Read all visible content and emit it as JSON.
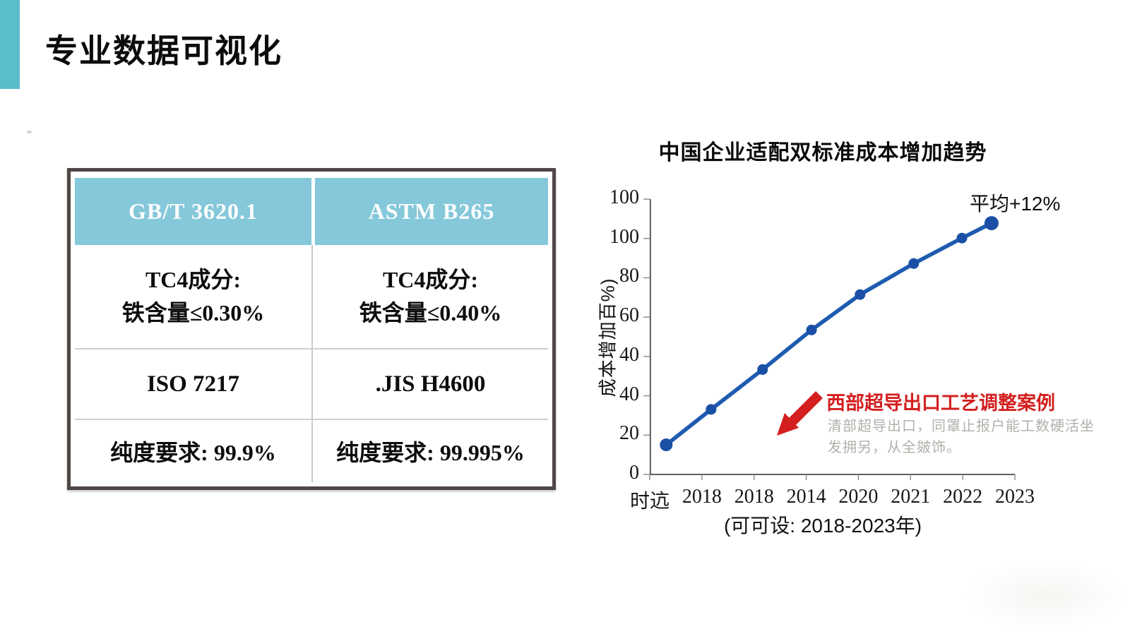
{
  "slide": {
    "title": "专业数据可视化",
    "accent_color": "#5bbcca"
  },
  "table": {
    "header_bg": "#84c8da",
    "headers": [
      "GB/T 3620.1",
      "ASTM B265"
    ],
    "rows": [
      {
        "left": [
          "TC4成分:",
          "铁含量≤0.30%"
        ],
        "right": [
          "TC4成分:",
          "铁含量≤0.40%"
        ]
      },
      {
        "left": [
          "ISO 7217"
        ],
        "right": [
          ".JIS H4600"
        ]
      },
      {
        "left": [
          "纯度要求: 99.9%"
        ],
        "right": [
          "纯度要求: 99.995%"
        ]
      }
    ]
  },
  "chart_data": {
    "type": "line",
    "title": "中国企业适配双标准成本增加趋势",
    "ylabel": "成本增加百%)",
    "caption": "(可可设: 2018-2023年)",
    "end_label": "平均+12%",
    "y_tick_labels": [
      "100",
      "100",
      "80",
      "60",
      "40",
      "40",
      "20",
      "0"
    ],
    "x_tick_labels": [
      "时迒",
      "2018",
      "2018",
      "2014",
      "2020",
      "2021",
      "2022",
      "2023"
    ],
    "series": [
      {
        "name": "成本增加趋势",
        "values_estimated_pct": [
          11,
          24,
          38,
          53,
          66,
          77,
          86,
          92
        ]
      }
    ],
    "point_fracs": [
      [
        0.045,
        0.893
      ],
      [
        0.168,
        0.765
      ],
      [
        0.309,
        0.621
      ],
      [
        0.443,
        0.478
      ],
      [
        0.576,
        0.35
      ],
      [
        0.723,
        0.238
      ],
      [
        0.855,
        0.146
      ],
      [
        0.936,
        0.092
      ]
    ],
    "ylim": [
      0,
      100
    ],
    "grid": false,
    "legend": false,
    "line_color": "#1e5bb0",
    "marker_color": "#1a4fa5",
    "axis_color": "#4a4a4a",
    "callout": {
      "title": "西部超导出口工艺调整案例",
      "lines": [
        "清部超导出口，同罩止报户能工数硬活坐",
        "发拥另，从全皴饰。"
      ],
      "accent_color": "#d31f1f"
    }
  }
}
